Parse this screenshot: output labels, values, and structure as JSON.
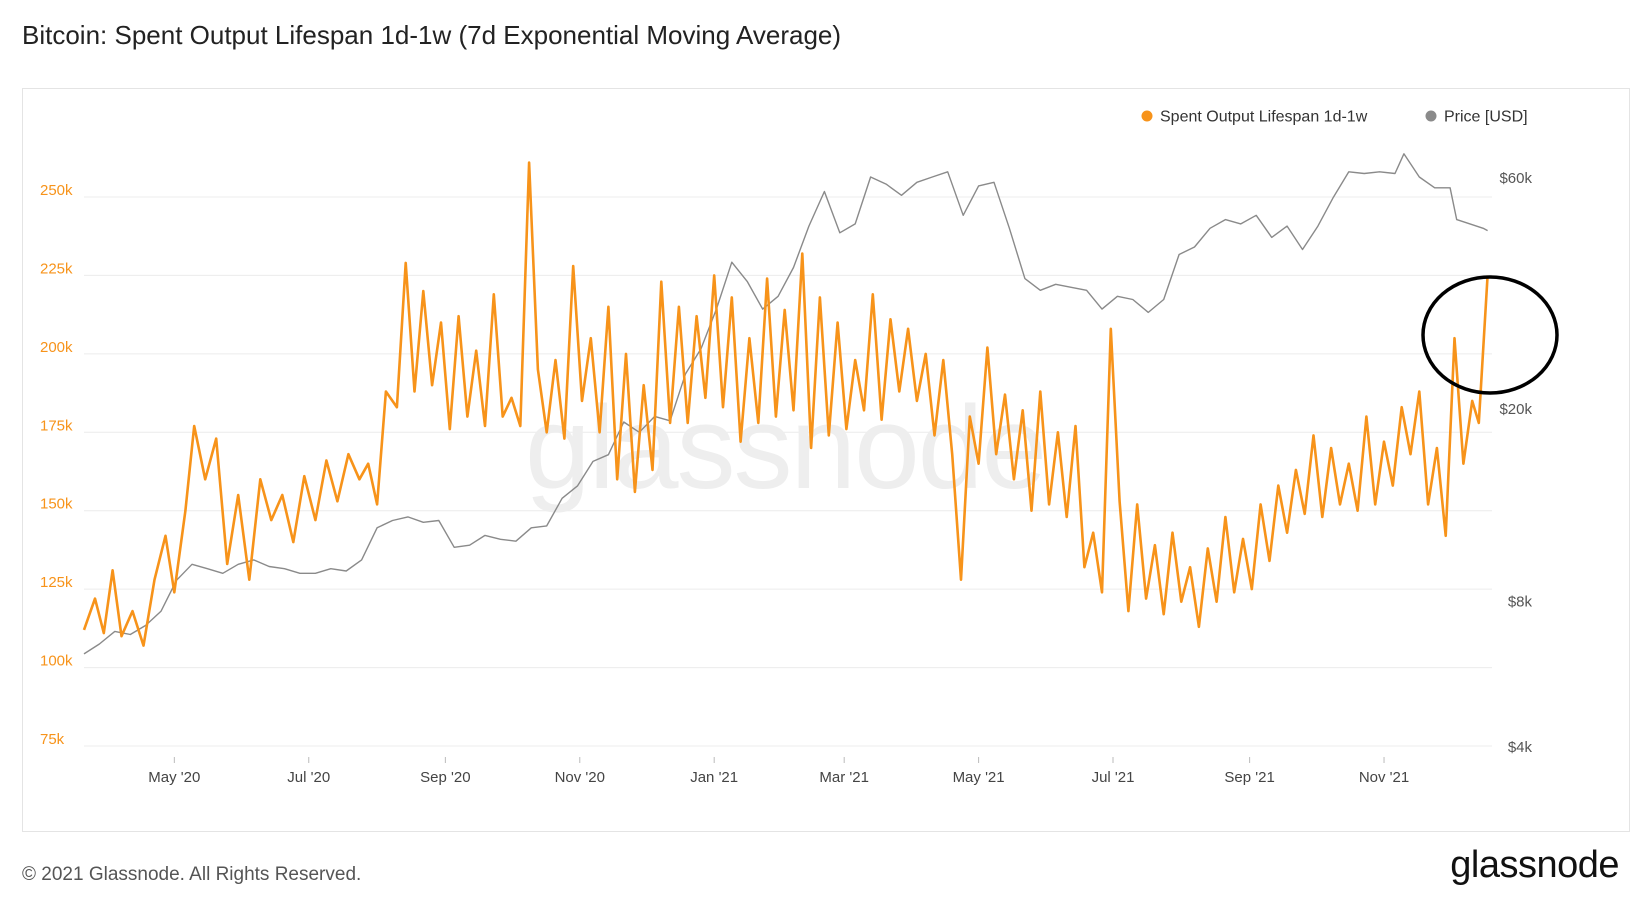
{
  "title": "Bitcoin: Spent Output Lifespan 1d-1w (7d Exponential Moving Average)",
  "footer": "© 2021 Glassnode. All Rights Reserved.",
  "brand": "glassnode",
  "watermark": "glassnode",
  "colors": {
    "sopl": "#f7931a",
    "price": "#8a8a8a",
    "grid": "#ececec",
    "annotation": "#000000"
  },
  "chart_data": {
    "type": "line",
    "x_range": [
      "2020-03-21",
      "2021-12-20"
    ],
    "x_ticks": [
      {
        "label": "May '20",
        "date": "2020-05-01"
      },
      {
        "label": "Jul '20",
        "date": "2020-07-01"
      },
      {
        "label": "Sep '20",
        "date": "2020-09-01"
      },
      {
        "label": "Nov '20",
        "date": "2020-11-01"
      },
      {
        "label": "Jan '21",
        "date": "2021-01-01"
      },
      {
        "label": "Mar '21",
        "date": "2021-03-01"
      },
      {
        "label": "May '21",
        "date": "2021-05-01"
      },
      {
        "label": "Jul '21",
        "date": "2021-07-01"
      },
      {
        "label": "Sep '21",
        "date": "2021-09-01"
      },
      {
        "label": "Nov '21",
        "date": "2021-11-01"
      }
    ],
    "y_left": {
      "ticks": [
        {
          "label": "75k",
          "value": 75000
        },
        {
          "label": "100k",
          "value": 100000
        },
        {
          "label": "125k",
          "value": 125000
        },
        {
          "label": "150k",
          "value": 150000
        },
        {
          "label": "175k",
          "value": 175000
        },
        {
          "label": "200k",
          "value": 200000
        },
        {
          "label": "225k",
          "value": 225000
        },
        {
          "label": "250k",
          "value": 250000
        }
      ],
      "range": [
        75000,
        265000
      ]
    },
    "y_right": {
      "scale": "log",
      "ticks": [
        {
          "label": "$4k",
          "value": 4000
        },
        {
          "label": "$8k",
          "value": 8000
        },
        {
          "label": "$20k",
          "value": 20000
        },
        {
          "label": "$60k",
          "value": 60000
        }
      ],
      "range": [
        4000,
        80000
      ]
    },
    "legend_position": "top-right",
    "series": [
      {
        "name": "Spent Output Lifespan 1d-1w",
        "axis": "left",
        "points": [
          [
            "2020-03-21",
            112000
          ],
          [
            "2020-03-26",
            122000
          ],
          [
            "2020-03-30",
            111000
          ],
          [
            "2020-04-03",
            131000
          ],
          [
            "2020-04-07",
            110000
          ],
          [
            "2020-04-12",
            118000
          ],
          [
            "2020-04-17",
            107000
          ],
          [
            "2020-04-22",
            128000
          ],
          [
            "2020-04-27",
            142000
          ],
          [
            "2020-05-01",
            124000
          ],
          [
            "2020-05-06",
            150000
          ],
          [
            "2020-05-10",
            177000
          ],
          [
            "2020-05-15",
            160000
          ],
          [
            "2020-05-20",
            173000
          ],
          [
            "2020-05-25",
            133000
          ],
          [
            "2020-05-30",
            155000
          ],
          [
            "2020-06-04",
            128000
          ],
          [
            "2020-06-09",
            160000
          ],
          [
            "2020-06-14",
            147000
          ],
          [
            "2020-06-19",
            155000
          ],
          [
            "2020-06-24",
            140000
          ],
          [
            "2020-06-29",
            161000
          ],
          [
            "2020-07-04",
            147000
          ],
          [
            "2020-07-09",
            166000
          ],
          [
            "2020-07-14",
            153000
          ],
          [
            "2020-07-19",
            168000
          ],
          [
            "2020-07-24",
            160000
          ],
          [
            "2020-07-28",
            165000
          ],
          [
            "2020-08-01",
            152000
          ],
          [
            "2020-08-05",
            188000
          ],
          [
            "2020-08-10",
            183000
          ],
          [
            "2020-08-14",
            229000
          ],
          [
            "2020-08-18",
            188000
          ],
          [
            "2020-08-22",
            220000
          ],
          [
            "2020-08-26",
            190000
          ],
          [
            "2020-08-30",
            210000
          ],
          [
            "2020-09-03",
            176000
          ],
          [
            "2020-09-07",
            212000
          ],
          [
            "2020-09-11",
            180000
          ],
          [
            "2020-09-15",
            201000
          ],
          [
            "2020-09-19",
            177000
          ],
          [
            "2020-09-23",
            219000
          ],
          [
            "2020-09-27",
            180000
          ],
          [
            "2020-10-01",
            186000
          ],
          [
            "2020-10-05",
            177000
          ],
          [
            "2020-10-09",
            261000
          ],
          [
            "2020-10-13",
            195000
          ],
          [
            "2020-10-17",
            175000
          ],
          [
            "2020-10-21",
            198000
          ],
          [
            "2020-10-25",
            173000
          ],
          [
            "2020-10-29",
            228000
          ],
          [
            "2020-11-02",
            185000
          ],
          [
            "2020-11-06",
            205000
          ],
          [
            "2020-11-10",
            175000
          ],
          [
            "2020-11-14",
            215000
          ],
          [
            "2020-11-18",
            160000
          ],
          [
            "2020-11-22",
            200000
          ],
          [
            "2020-11-26",
            156000
          ],
          [
            "2020-11-30",
            190000
          ],
          [
            "2020-12-04",
            163000
          ],
          [
            "2020-12-08",
            223000
          ],
          [
            "2020-12-12",
            178000
          ],
          [
            "2020-12-16",
            215000
          ],
          [
            "2020-12-20",
            178000
          ],
          [
            "2020-12-24",
            212000
          ],
          [
            "2020-12-28",
            186000
          ],
          [
            "2021-01-01",
            225000
          ],
          [
            "2021-01-05",
            183000
          ],
          [
            "2021-01-09",
            218000
          ],
          [
            "2021-01-13",
            172000
          ],
          [
            "2021-01-17",
            205000
          ],
          [
            "2021-01-21",
            178000
          ],
          [
            "2021-01-25",
            224000
          ],
          [
            "2021-01-29",
            180000
          ],
          [
            "2021-02-02",
            214000
          ],
          [
            "2021-02-06",
            182000
          ],
          [
            "2021-02-10",
            232000
          ],
          [
            "2021-02-14",
            170000
          ],
          [
            "2021-02-18",
            218000
          ],
          [
            "2021-02-22",
            174000
          ],
          [
            "2021-02-26",
            210000
          ],
          [
            "2021-03-02",
            176000
          ],
          [
            "2021-03-06",
            198000
          ],
          [
            "2021-03-10",
            182000
          ],
          [
            "2021-03-14",
            219000
          ],
          [
            "2021-03-18",
            179000
          ],
          [
            "2021-03-22",
            211000
          ],
          [
            "2021-03-26",
            188000
          ],
          [
            "2021-03-30",
            208000
          ],
          [
            "2021-04-03",
            185000
          ],
          [
            "2021-04-07",
            200000
          ],
          [
            "2021-04-11",
            174000
          ],
          [
            "2021-04-15",
            198000
          ],
          [
            "2021-04-19",
            168000
          ],
          [
            "2021-04-23",
            128000
          ],
          [
            "2021-04-27",
            180000
          ],
          [
            "2021-05-01",
            165000
          ],
          [
            "2021-05-05",
            202000
          ],
          [
            "2021-05-09",
            168000
          ],
          [
            "2021-05-13",
            187000
          ],
          [
            "2021-05-17",
            160000
          ],
          [
            "2021-05-21",
            182000
          ],
          [
            "2021-05-25",
            150000
          ],
          [
            "2021-05-29",
            188000
          ],
          [
            "2021-06-02",
            152000
          ],
          [
            "2021-06-06",
            175000
          ],
          [
            "2021-06-10",
            148000
          ],
          [
            "2021-06-14",
            177000
          ],
          [
            "2021-06-18",
            132000
          ],
          [
            "2021-06-22",
            143000
          ],
          [
            "2021-06-26",
            124000
          ],
          [
            "2021-06-30",
            208000
          ],
          [
            "2021-07-04",
            153000
          ],
          [
            "2021-07-08",
            118000
          ],
          [
            "2021-07-12",
            152000
          ],
          [
            "2021-07-16",
            122000
          ],
          [
            "2021-07-20",
            139000
          ],
          [
            "2021-07-24",
            117000
          ],
          [
            "2021-07-28",
            143000
          ],
          [
            "2021-08-01",
            121000
          ],
          [
            "2021-08-05",
            132000
          ],
          [
            "2021-08-09",
            113000
          ],
          [
            "2021-08-13",
            138000
          ],
          [
            "2021-08-17",
            121000
          ],
          [
            "2021-08-21",
            148000
          ],
          [
            "2021-08-25",
            124000
          ],
          [
            "2021-08-29",
            141000
          ],
          [
            "2021-09-02",
            125000
          ],
          [
            "2021-09-06",
            152000
          ],
          [
            "2021-09-10",
            134000
          ],
          [
            "2021-09-14",
            158000
          ],
          [
            "2021-09-18",
            143000
          ],
          [
            "2021-09-22",
            163000
          ],
          [
            "2021-09-26",
            149000
          ],
          [
            "2021-09-30",
            174000
          ],
          [
            "2021-10-04",
            148000
          ],
          [
            "2021-10-08",
            170000
          ],
          [
            "2021-10-12",
            152000
          ],
          [
            "2021-10-16",
            165000
          ],
          [
            "2021-10-20",
            150000
          ],
          [
            "2021-10-24",
            180000
          ],
          [
            "2021-10-28",
            152000
          ],
          [
            "2021-11-01",
            172000
          ],
          [
            "2021-11-05",
            158000
          ],
          [
            "2021-11-09",
            183000
          ],
          [
            "2021-11-13",
            168000
          ],
          [
            "2021-11-17",
            188000
          ],
          [
            "2021-11-21",
            152000
          ],
          [
            "2021-11-25",
            170000
          ],
          [
            "2021-11-29",
            142000
          ],
          [
            "2021-12-03",
            205000
          ],
          [
            "2021-12-07",
            165000
          ],
          [
            "2021-12-11",
            185000
          ],
          [
            "2021-12-14",
            178000
          ],
          [
            "2021-12-18",
            225000
          ]
        ]
      },
      {
        "name": "Price [USD]",
        "axis": "right",
        "points": [
          [
            "2020-03-21",
            6200
          ],
          [
            "2020-03-28",
            6500
          ],
          [
            "2020-04-04",
            6900
          ],
          [
            "2020-04-11",
            6800
          ],
          [
            "2020-04-18",
            7100
          ],
          [
            "2020-04-25",
            7600
          ],
          [
            "2020-05-02",
            8800
          ],
          [
            "2020-05-09",
            9500
          ],
          [
            "2020-05-16",
            9300
          ],
          [
            "2020-05-23",
            9100
          ],
          [
            "2020-05-30",
            9500
          ],
          [
            "2020-06-06",
            9700
          ],
          [
            "2020-06-13",
            9400
          ],
          [
            "2020-06-20",
            9300
          ],
          [
            "2020-06-27",
            9100
          ],
          [
            "2020-07-04",
            9100
          ],
          [
            "2020-07-11",
            9300
          ],
          [
            "2020-07-18",
            9200
          ],
          [
            "2020-07-25",
            9700
          ],
          [
            "2020-08-01",
            11300
          ],
          [
            "2020-08-08",
            11700
          ],
          [
            "2020-08-15",
            11900
          ],
          [
            "2020-08-22",
            11600
          ],
          [
            "2020-08-29",
            11700
          ],
          [
            "2020-09-05",
            10300
          ],
          [
            "2020-09-12",
            10400
          ],
          [
            "2020-09-19",
            10900
          ],
          [
            "2020-09-26",
            10700
          ],
          [
            "2020-10-03",
            10600
          ],
          [
            "2020-10-10",
            11300
          ],
          [
            "2020-10-17",
            11400
          ],
          [
            "2020-10-24",
            13000
          ],
          [
            "2020-10-31",
            13800
          ],
          [
            "2020-11-07",
            15500
          ],
          [
            "2020-11-14",
            16000
          ],
          [
            "2020-11-21",
            18700
          ],
          [
            "2020-11-28",
            17800
          ],
          [
            "2020-12-05",
            19200
          ],
          [
            "2020-12-12",
            18800
          ],
          [
            "2020-12-19",
            23500
          ],
          [
            "2020-12-26",
            26500
          ],
          [
            "2021-01-02",
            32000
          ],
          [
            "2021-01-09",
            40000
          ],
          [
            "2021-01-16",
            36500
          ],
          [
            "2021-01-23",
            32000
          ],
          [
            "2021-01-30",
            34000
          ],
          [
            "2021-02-06",
            39000
          ],
          [
            "2021-02-13",
            47500
          ],
          [
            "2021-02-20",
            56000
          ],
          [
            "2021-02-27",
            46000
          ],
          [
            "2021-03-06",
            48000
          ],
          [
            "2021-03-13",
            60000
          ],
          [
            "2021-03-20",
            58000
          ],
          [
            "2021-03-27",
            55000
          ],
          [
            "2021-04-03",
            58500
          ],
          [
            "2021-04-10",
            60000
          ],
          [
            "2021-04-17",
            61500
          ],
          [
            "2021-04-24",
            50000
          ],
          [
            "2021-05-01",
            57500
          ],
          [
            "2021-05-08",
            58500
          ],
          [
            "2021-05-15",
            47000
          ],
          [
            "2021-05-22",
            37000
          ],
          [
            "2021-05-29",
            35000
          ],
          [
            "2021-06-05",
            36000
          ],
          [
            "2021-06-12",
            35500
          ],
          [
            "2021-06-19",
            35000
          ],
          [
            "2021-06-26",
            32000
          ],
          [
            "2021-07-03",
            34000
          ],
          [
            "2021-07-10",
            33500
          ],
          [
            "2021-07-17",
            31500
          ],
          [
            "2021-07-24",
            33500
          ],
          [
            "2021-07-31",
            41500
          ],
          [
            "2021-08-07",
            43000
          ],
          [
            "2021-08-14",
            47000
          ],
          [
            "2021-08-21",
            49000
          ],
          [
            "2021-08-28",
            48000
          ],
          [
            "2021-09-04",
            50000
          ],
          [
            "2021-09-11",
            45000
          ],
          [
            "2021-09-18",
            47500
          ],
          [
            "2021-09-25",
            42500
          ],
          [
            "2021-10-02",
            47500
          ],
          [
            "2021-10-09",
            54500
          ],
          [
            "2021-10-16",
            61500
          ],
          [
            "2021-10-23",
            61000
          ],
          [
            "2021-10-30",
            61500
          ],
          [
            "2021-11-06",
            61000
          ],
          [
            "2021-11-10",
            67000
          ],
          [
            "2021-11-17",
            60000
          ],
          [
            "2021-11-24",
            57000
          ],
          [
            "2021-12-01",
            57000
          ],
          [
            "2021-12-04",
            49000
          ],
          [
            "2021-12-10",
            48000
          ],
          [
            "2021-12-16",
            47000
          ],
          [
            "2021-12-18",
            46500
          ]
        ]
      }
    ]
  }
}
